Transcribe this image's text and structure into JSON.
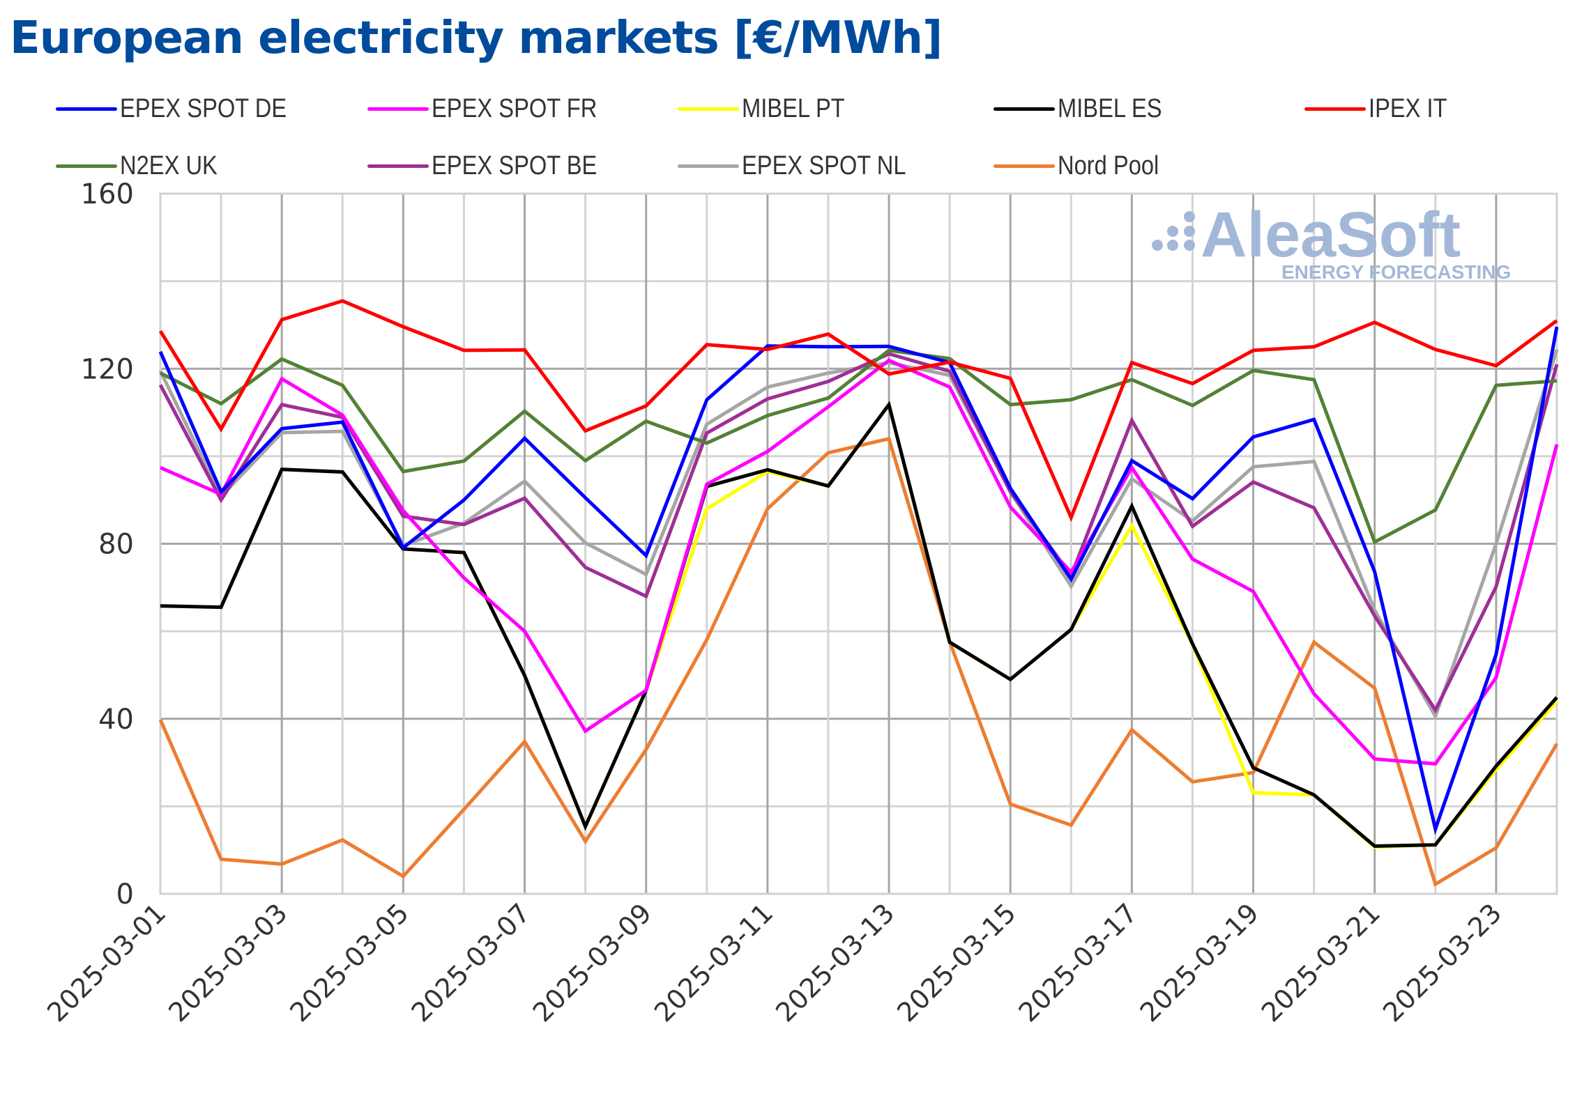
{
  "chart_data": {
    "type": "line",
    "title": "European electricity markets [€/MWh]",
    "xlabel": "",
    "ylabel": "",
    "ylim": [
      0,
      160
    ],
    "yticks": [
      0,
      40,
      80,
      120,
      160
    ],
    "y_minor_step": 20,
    "grid": true,
    "legend_position": "top",
    "x": [
      "2025-03-01",
      "2025-03-02",
      "2025-03-03",
      "2025-03-04",
      "2025-03-05",
      "2025-03-06",
      "2025-03-07",
      "2025-03-08",
      "2025-03-09",
      "2025-03-10",
      "2025-03-11",
      "2025-03-12",
      "2025-03-13",
      "2025-03-14",
      "2025-03-15",
      "2025-03-16",
      "2025-03-17",
      "2025-03-18",
      "2025-03-19",
      "2025-03-20",
      "2025-03-21",
      "2025-03-22",
      "2025-03-23",
      "2025-03-24"
    ],
    "xtick_labels": [
      "2025-03-01",
      "2025-03-03",
      "2025-03-05",
      "2025-03-07",
      "2025-03-09",
      "2025-03-11",
      "2025-03-13",
      "2025-03-15",
      "2025-03-17",
      "2025-03-19",
      "2025-03-21",
      "2025-03-23"
    ],
    "series": [
      {
        "name": "EPEX SPOT DE",
        "color": "#0000ff",
        "values": [
          123.9,
          91.9,
          106.3,
          107.8,
          79.1,
          90.0,
          104.1,
          90.5,
          77.3,
          112.9,
          125.2,
          125.0,
          125.1,
          121.4,
          92.7,
          71.9,
          99.0,
          90.3,
          104.4,
          108.4,
          73.6,
          14.8,
          54.7,
          129.6
        ]
      },
      {
        "name": "EPEX SPOT FR",
        "color": "#ff00ff",
        "values": [
          97.4,
          91.3,
          117.7,
          109.4,
          87.6,
          72.2,
          60.0,
          37.2,
          46.5,
          93.6,
          101.1,
          111.3,
          121.9,
          115.8,
          88.4,
          73.5,
          97.4,
          76.5,
          69.1,
          45.7,
          30.8,
          29.7,
          49.4,
          102.7
        ]
      },
      {
        "name": "MIBEL PT",
        "color": "#ffff00",
        "values": [
          65.8,
          65.5,
          97.0,
          96.4,
          78.8,
          78.0,
          49.9,
          15.4,
          46.5,
          88.0,
          96.5,
          93.2,
          111.8,
          57.5,
          49.0,
          60.4,
          84.1,
          57.0,
          23.1,
          22.6,
          10.7,
          11.2,
          28.4,
          44.0
        ]
      },
      {
        "name": "MIBEL ES",
        "color": "#000000",
        "values": [
          65.8,
          65.5,
          97.0,
          96.4,
          78.8,
          78.0,
          49.9,
          15.4,
          46.5,
          93.1,
          96.9,
          93.2,
          111.8,
          57.5,
          49.0,
          60.4,
          88.6,
          57.1,
          28.8,
          22.6,
          10.9,
          11.2,
          29.2,
          44.9
        ]
      },
      {
        "name": "IPEX IT",
        "color": "#ff0000",
        "values": [
          128.6,
          106.2,
          131.2,
          135.5,
          129.6,
          124.2,
          124.3,
          105.8,
          111.5,
          125.5,
          124.4,
          127.9,
          118.8,
          121.5,
          117.8,
          86.0,
          121.4,
          116.6,
          124.2,
          125.0,
          130.6,
          124.4,
          120.7,
          131.0
        ]
      },
      {
        "name": "N2EX UK",
        "color": "#538135",
        "values": [
          119.0,
          112.0,
          122.2,
          116.2,
          96.5,
          98.9,
          110.3,
          99.0,
          108.0,
          103.0,
          109.3,
          113.3,
          124.2,
          122.3,
          111.8,
          112.9,
          117.5,
          111.6,
          119.6,
          117.5,
          80.4,
          87.7,
          116.2,
          117.2
        ]
      },
      {
        "name": "EPEX SPOT BE",
        "color": "#9e2f96",
        "values": [
          116.3,
          90.0,
          111.8,
          108.9,
          86.3,
          84.4,
          90.4,
          74.6,
          68.0,
          105.3,
          113.1,
          117.1,
          123.4,
          119.4,
          91.9,
          72.7,
          108.2,
          84.0,
          94.1,
          88.2,
          63.5,
          42.0,
          70.2,
          121.0
        ]
      },
      {
        "name": "EPEX SPOT NL",
        "color": "#a6a6a6",
        "values": [
          119.5,
          90.8,
          105.4,
          105.7,
          79.6,
          84.7,
          94.3,
          80.2,
          73.0,
          107.3,
          115.8,
          119.0,
          121.4,
          118.5,
          91.9,
          70.3,
          94.8,
          85.2,
          97.6,
          98.8,
          64.8,
          40.6,
          80.0,
          124.4
        ]
      },
      {
        "name": "Nord Pool",
        "color": "#ed7d31",
        "values": [
          39.8,
          7.9,
          6.8,
          12.3,
          4.0,
          19.3,
          34.8,
          12.0,
          33.0,
          58.1,
          88.0,
          100.8,
          104.0,
          57.6,
          20.5,
          15.7,
          37.5,
          25.6,
          27.7,
          57.5,
          47.0,
          2.2,
          10.5,
          34.3
        ]
      }
    ],
    "draw_order": [
      "Nord Pool",
      "EPEX SPOT NL",
      "EPEX SPOT BE",
      "N2EX UK",
      "MIBEL PT",
      "MIBEL ES",
      "EPEX SPOT FR",
      "EPEX SPOT DE",
      "IPEX IT"
    ],
    "watermark": {
      "brand": "AleaSoft",
      "tagline": "ENERGY FORECASTING",
      "color": "#a3b8d8"
    }
  },
  "colors": {
    "title": "#004b9b",
    "text": "#333333",
    "grid_major": "#a6a6a6",
    "grid_minor": "#d4d4d4"
  }
}
